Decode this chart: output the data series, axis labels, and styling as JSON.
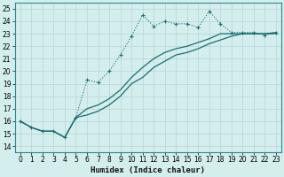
{
  "xlabel": "Humidex (Indice chaleur)",
  "bg_color": "#d4eeee",
  "grid_color": "#c8dede",
  "line_color": "#1a6e6e",
  "xlim": [
    -0.5,
    23.5
  ],
  "ylim": [
    13.5,
    25.5
  ],
  "xticks": [
    0,
    1,
    2,
    3,
    4,
    5,
    6,
    7,
    8,
    9,
    10,
    11,
    12,
    13,
    14,
    15,
    16,
    17,
    18,
    19,
    20,
    21,
    22,
    23
  ],
  "yticks": [
    14,
    15,
    16,
    17,
    18,
    19,
    20,
    21,
    22,
    23,
    24,
    25
  ],
  "line1_x": [
    0,
    1,
    2,
    3,
    4,
    5,
    6,
    7,
    8,
    9,
    10,
    11,
    12,
    13,
    14,
    15,
    16,
    17,
    18,
    19,
    20,
    21,
    22,
    23
  ],
  "line1_y": [
    16.0,
    15.5,
    15.2,
    15.2,
    14.7,
    16.3,
    19.3,
    19.1,
    20.0,
    21.3,
    22.8,
    24.5,
    23.6,
    24.0,
    23.8,
    23.8,
    23.5,
    24.8,
    23.8,
    23.1,
    23.1,
    23.1,
    22.9,
    23.1
  ],
  "line2_x": [
    0,
    1,
    2,
    3,
    4,
    5,
    6,
    7,
    8,
    9,
    10,
    11,
    12,
    13,
    14,
    15,
    16,
    17,
    18,
    19,
    20,
    21,
    22,
    23
  ],
  "line2_y": [
    16.0,
    15.5,
    15.2,
    15.2,
    14.7,
    16.3,
    17.0,
    17.3,
    17.8,
    18.5,
    19.5,
    20.3,
    21.0,
    21.5,
    21.8,
    22.0,
    22.3,
    22.6,
    23.0,
    23.0,
    23.0,
    23.0,
    23.0,
    23.1
  ],
  "line3_x": [
    0,
    1,
    2,
    3,
    4,
    5,
    6,
    7,
    8,
    9,
    10,
    11,
    12,
    13,
    14,
    15,
    16,
    17,
    18,
    19,
    20,
    21,
    22,
    23
  ],
  "line3_y": [
    16.0,
    15.5,
    15.2,
    15.2,
    14.7,
    16.3,
    16.5,
    16.8,
    17.3,
    18.0,
    19.0,
    19.5,
    20.3,
    20.8,
    21.3,
    21.5,
    21.8,
    22.2,
    22.5,
    22.8,
    23.0,
    23.0,
    23.0,
    23.0
  ]
}
